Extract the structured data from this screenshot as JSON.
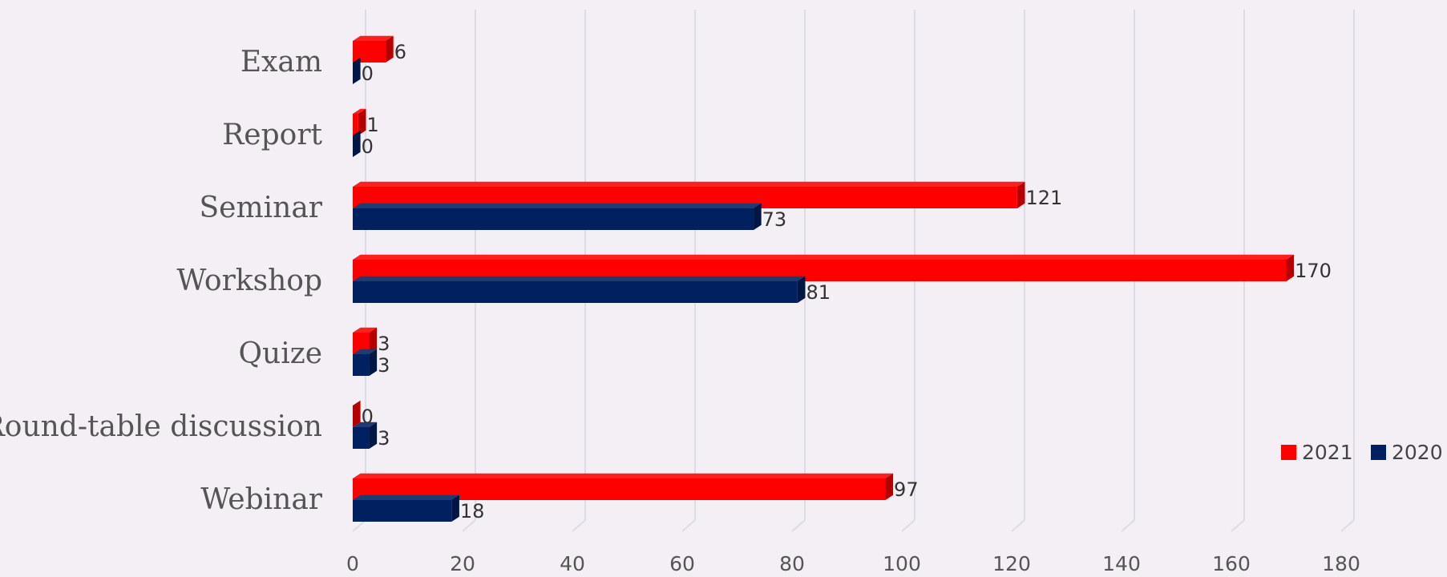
{
  "chart_data": {
    "type": "bar",
    "orientation": "horizontal",
    "style": "3d",
    "categories": [
      "Exam",
      "Report",
      "Seminar",
      "Workshop",
      "Quize",
      "Round-table discussion",
      "Webinar"
    ],
    "series": [
      {
        "name": "2021",
        "color": "#ff0000",
        "values": [
          6,
          1,
          121,
          170,
          3,
          0,
          97
        ]
      },
      {
        "name": "2020",
        "color": "#002060",
        "values": [
          0,
          0,
          73,
          81,
          3,
          3,
          18
        ]
      }
    ],
    "xlim": [
      0,
      180
    ],
    "xticks": [
      "0",
      "20",
      "40",
      "60",
      "80",
      "100",
      "120",
      "140",
      "160",
      "180"
    ],
    "grid": true,
    "legend_position": "right",
    "title": "",
    "xlabel": "",
    "ylabel": ""
  }
}
